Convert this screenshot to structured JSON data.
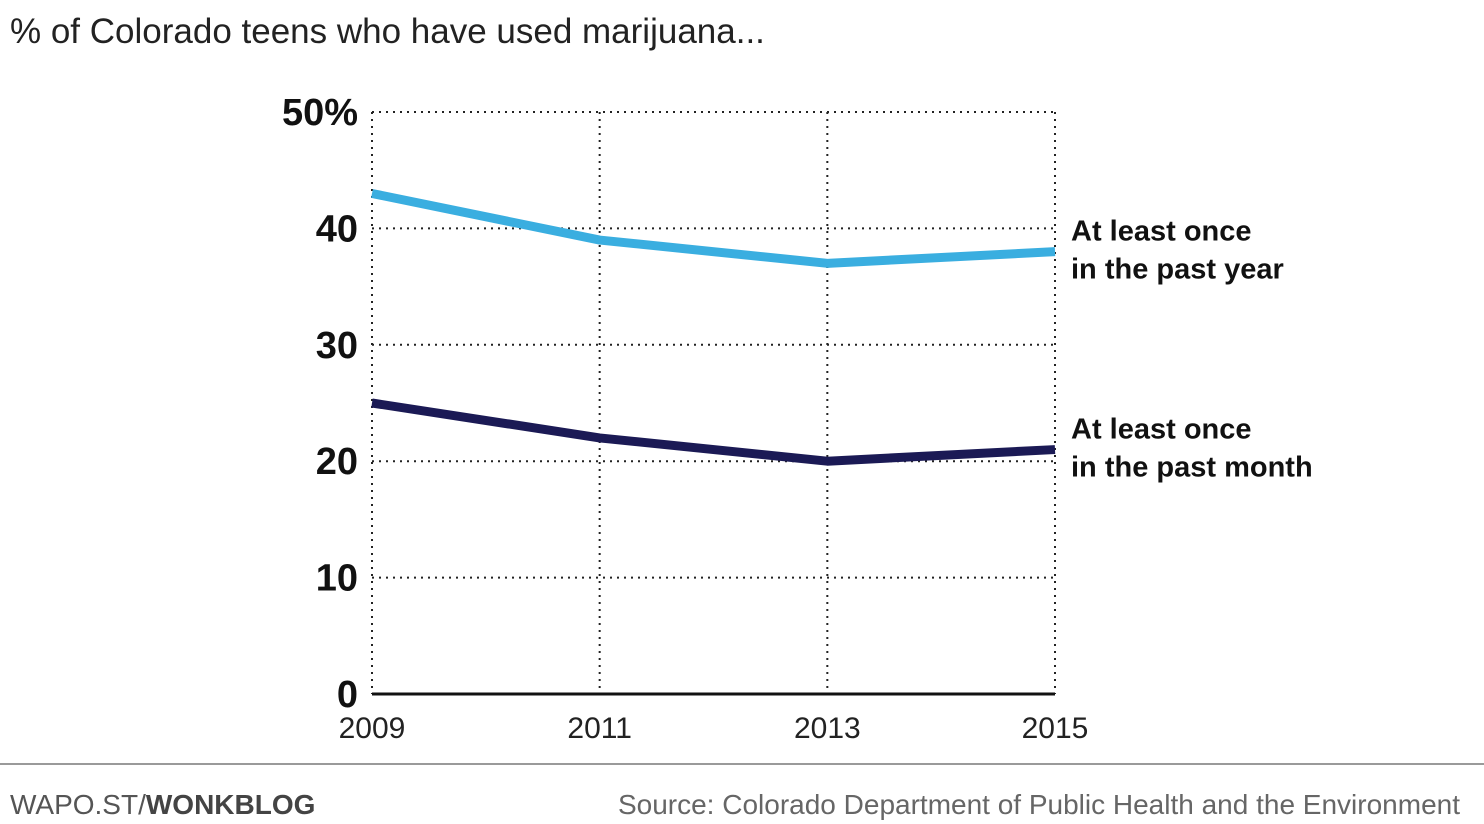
{
  "title": "% of Colorado teens who have used marijuana...",
  "chart_data": {
    "type": "line",
    "x": [
      2009,
      2011,
      2013,
      2015
    ],
    "x_tick_labels": [
      "2009",
      "2011",
      "2013",
      "2015"
    ],
    "y_tick_labels": [
      "0",
      "10",
      "20",
      "30",
      "40",
      "50%"
    ],
    "ylim": [
      0,
      50
    ],
    "grid": true,
    "series": [
      {
        "name": "At least once in the past year",
        "label_lines": [
          "At least once",
          "in the past year"
        ],
        "values": [
          43,
          39,
          37,
          38
        ],
        "color": "#3aaee0"
      },
      {
        "name": "At least once in the past month",
        "label_lines": [
          "At least once",
          "in the past month"
        ],
        "values": [
          25,
          22,
          20,
          21
        ],
        "color": "#1b1a55"
      }
    ]
  },
  "footer": {
    "credit_prefix": "WAPO.ST/",
    "credit_brand": "WONKBLOG",
    "source": "Source: Colorado Department of Public Health and the Environment"
  }
}
